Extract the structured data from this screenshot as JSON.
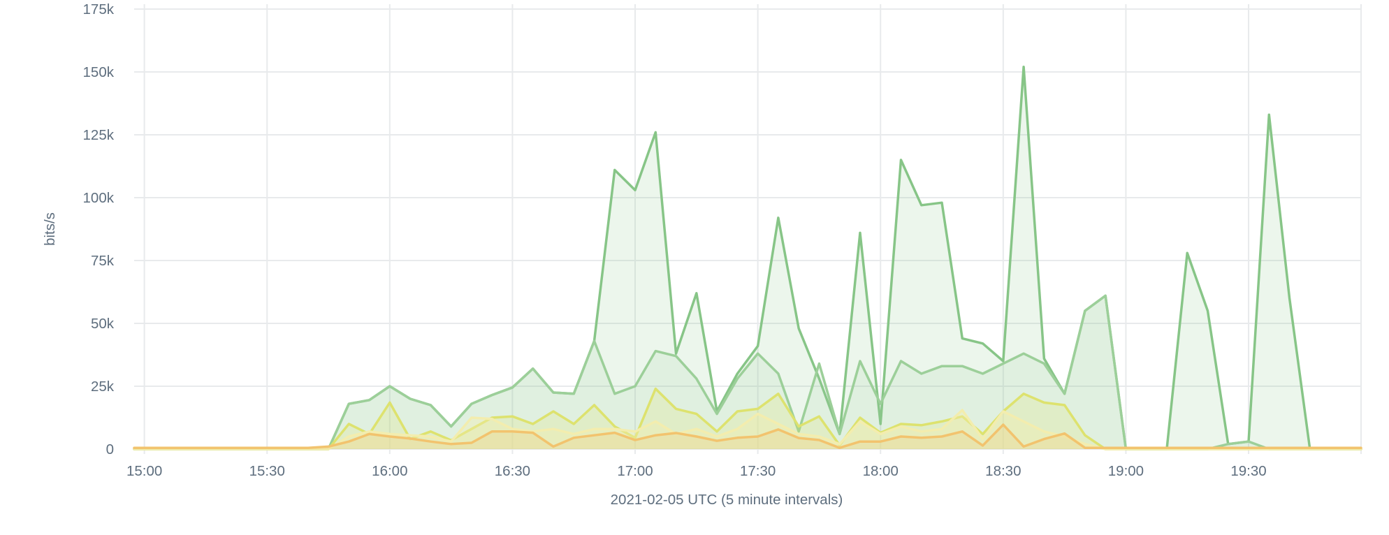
{
  "chart_data": {
    "type": "area",
    "title": "",
    "xlabel": "2021-02-05 UTC (5 minute intervals)",
    "ylabel": "bits/s",
    "unit": "bits per second, values in thousands (k)",
    "grid": true,
    "legend_position": "none",
    "ylim_k": [
      0,
      175
    ],
    "y_ticks_k": [
      0,
      25,
      50,
      75,
      100,
      125,
      150,
      175
    ],
    "y_tick_labels": [
      "0",
      "25k",
      "50k",
      "75k",
      "100k",
      "125k",
      "150k",
      "175k"
    ],
    "x_tick_labels": [
      "15:00",
      "15:30",
      "16:00",
      "16:30",
      "17:00",
      "17:30",
      "18:00",
      "18:30",
      "19:00",
      "19:30"
    ],
    "x_tick_interval_minutes": 30,
    "interval_minutes": 5,
    "x": [
      "15:00",
      "15:05",
      "15:10",
      "15:15",
      "15:20",
      "15:25",
      "15:30",
      "15:35",
      "15:40",
      "15:45",
      "15:50",
      "15:55",
      "16:00",
      "16:05",
      "16:10",
      "16:15",
      "16:20",
      "16:25",
      "16:30",
      "16:35",
      "16:40",
      "16:45",
      "16:50",
      "16:55",
      "17:00",
      "17:05",
      "17:10",
      "17:15",
      "17:20",
      "17:25",
      "17:30",
      "17:35",
      "17:40",
      "17:45",
      "17:50",
      "17:55",
      "18:00",
      "18:05",
      "18:10",
      "18:15",
      "18:20",
      "18:25",
      "18:30",
      "18:35",
      "18:40",
      "18:45",
      "18:50",
      "18:55",
      "19:00",
      "19:05",
      "19:10",
      "19:15",
      "19:20",
      "19:25",
      "19:30",
      "19:35",
      "19:40",
      "19:45",
      "19:50",
      "19:55"
    ],
    "series": [
      {
        "name": "green-primary",
        "color": "#87c587",
        "fill_opacity": 0.16,
        "values_k": [
          0,
          0,
          0,
          0,
          0,
          0,
          0,
          0,
          0,
          0,
          18,
          19.5,
          25,
          20,
          17.5,
          9,
          18,
          21.5,
          24.5,
          32,
          22.5,
          22,
          43,
          111,
          103,
          126,
          38,
          62,
          15,
          30,
          41,
          92,
          48,
          28,
          6,
          86,
          10,
          115,
          97,
          98,
          44,
          42,
          35,
          152,
          36,
          22,
          55,
          61,
          0,
          0,
          0,
          78,
          55,
          2,
          3,
          133,
          60,
          0,
          0,
          0
        ]
      },
      {
        "name": "green-secondary",
        "color": "#9ccf99",
        "fill_opacity": 0.14,
        "values_k": [
          0,
          0,
          0,
          0,
          0,
          0,
          0,
          0,
          0,
          0,
          18,
          19.5,
          25,
          20,
          17.5,
          9,
          18,
          21.5,
          24.5,
          32,
          22.5,
          22,
          43,
          22,
          25,
          39,
          37,
          28,
          14,
          28,
          38,
          30,
          7,
          34,
          6,
          35,
          18,
          35,
          30,
          33,
          33,
          30,
          34,
          38,
          34,
          22,
          55,
          61,
          0,
          0,
          0,
          0,
          0,
          2,
          3,
          0,
          0,
          0,
          0,
          0
        ]
      },
      {
        "name": "yellow-green",
        "color": "#dde26e",
        "fill_opacity": 0.22,
        "values_k": [
          0,
          0,
          0,
          0,
          0,
          0,
          0,
          0,
          0,
          0,
          10,
          6,
          18.5,
          4,
          7,
          3.5,
          8,
          12.5,
          13,
          10,
          15,
          10,
          17.5,
          9,
          4.5,
          24,
          16,
          14,
          7,
          15,
          16,
          22,
          9,
          13,
          1.5,
          12.5,
          6.5,
          10,
          9.5,
          11,
          13,
          6,
          15,
          22,
          18.5,
          17.5,
          5.5,
          0,
          0,
          0,
          0,
          0,
          0,
          0,
          0,
          0,
          0,
          0,
          0,
          0
        ]
      },
      {
        "name": "cream-yellow",
        "color": "#f3edae",
        "fill_opacity": 0.38,
        "values_k": [
          0,
          0,
          0,
          0,
          0,
          0,
          0,
          0,
          0,
          0,
          5,
          7,
          6,
          5.5,
          5,
          3,
          12.5,
          12,
          8,
          7,
          8,
          6,
          8,
          8,
          7,
          11,
          6,
          8,
          5,
          8,
          14,
          10,
          6,
          5,
          2,
          11,
          6,
          9,
          7,
          8,
          15.5,
          4,
          15,
          11,
          7,
          5,
          2,
          0,
          0,
          0,
          0,
          0,
          0,
          0,
          0,
          0,
          0,
          0,
          0,
          0
        ]
      },
      {
        "name": "orange",
        "color": "#f2c36e",
        "fill_opacity": 0.2,
        "values_k": [
          0.5,
          0.5,
          0.5,
          0.5,
          0.5,
          0.5,
          0.5,
          0.5,
          0.5,
          1,
          3,
          6,
          5,
          4.2,
          3,
          2,
          2.5,
          7,
          7,
          6.5,
          1,
          4.5,
          5.5,
          6.5,
          3.6,
          5.5,
          6.4,
          5,
          3.3,
          4.5,
          5,
          7.8,
          4.4,
          3.6,
          0.5,
          3,
          3,
          5,
          4.5,
          5,
          7,
          1.4,
          9.7,
          1,
          4,
          6.2,
          0.5,
          0.5,
          0.5,
          0.5,
          0.5,
          0.5,
          0.5,
          0.5,
          0.5,
          0.5,
          0.5,
          0.5,
          0.5,
          0.5
        ]
      }
    ]
  },
  "style": {
    "background": "#ffffff",
    "gridline_color": "#e8eaec",
    "label_color": "#5e6e7e"
  }
}
